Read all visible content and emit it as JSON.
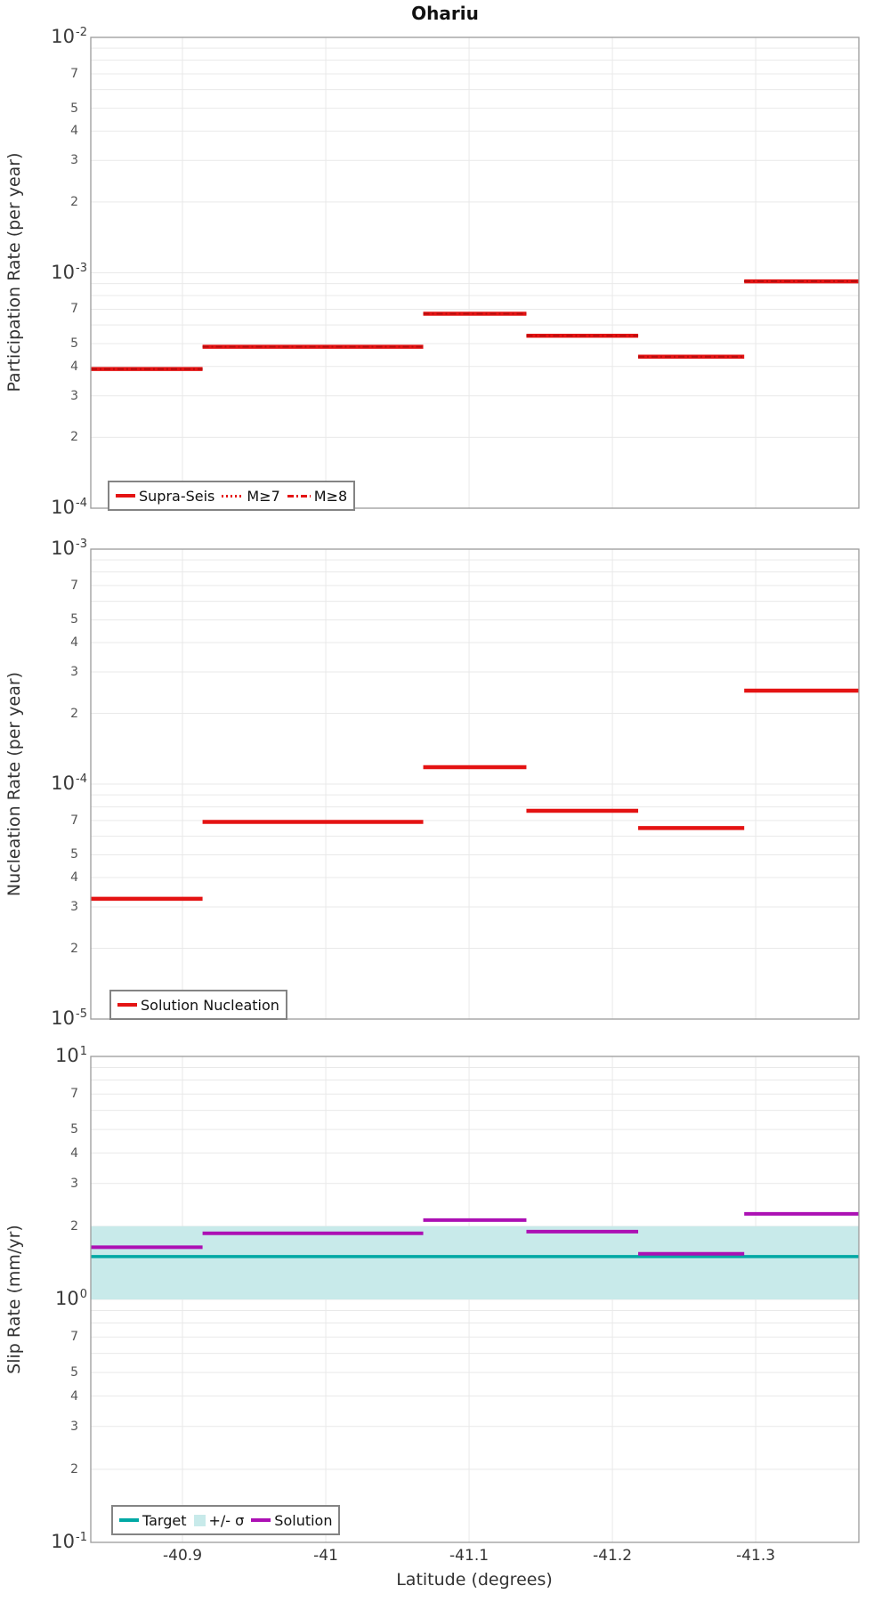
{
  "title": "Ohariu",
  "chart_data": [
    {
      "type": "line",
      "subplot": "participation",
      "title": "Ohariu",
      "ylabel": "Participation Rate (per year)",
      "xlabel": "",
      "ylim": [
        0.0001,
        0.01
      ],
      "xlim": [
        -40.836,
        -41.372
      ],
      "grid": true,
      "xticks": [
        -40.9,
        -41,
        -41.1,
        -41.2,
        -41.3
      ],
      "xtick_labels": [
        "-40.9",
        "-41",
        "-41.1",
        "-41.2",
        "-41.3"
      ],
      "ytick_majors": [
        {
          "base": "10",
          "exp": "-2"
        },
        {
          "base": "10",
          "exp": "-3"
        },
        {
          "base": "10",
          "exp": "-4"
        }
      ],
      "ytick_minors": [
        "7",
        "5",
        "4",
        "3",
        "2"
      ],
      "section_edges": [
        -40.836,
        -40.914,
        -41.068,
        -41.14,
        -41.218,
        -41.292,
        -41.372
      ],
      "series": [
        {
          "name": "Supra-Seis",
          "color": "#e41313",
          "style": "solid",
          "width": 4.5,
          "values": [
            0.00039,
            0.000485,
            0.00067,
            0.00054,
            0.00044,
            0.00092
          ]
        },
        {
          "name": "M≥7",
          "color": "#b50d0d",
          "style": "dotted",
          "width": 1.8,
          "values": [
            0.00039,
            0.000485,
            0.00067,
            0.00054,
            0.00044,
            0.00092
          ]
        },
        {
          "name": "M≥8",
          "color": "#b50d0d",
          "style": "dashdot",
          "width": 1.8,
          "values": [
            0.00039,
            0.000485,
            0.00067,
            0.00054,
            0.00044,
            0.00092
          ]
        }
      ],
      "legend_items": [
        {
          "label": "Supra-Seis",
          "swatch": "solid",
          "color": "#e41313"
        },
        {
          "label": "M≥7",
          "swatch": "dotted",
          "color": "#e41313"
        },
        {
          "label": "M≥8",
          "swatch": "dashdot",
          "color": "#e41313"
        }
      ],
      "legend_position": "bottom-left"
    },
    {
      "type": "line",
      "subplot": "nucleation",
      "title": "",
      "ylabel": "Nucleation Rate (per year)",
      "xlabel": "",
      "ylim": [
        1e-05,
        0.001
      ],
      "xlim": [
        -40.836,
        -41.372
      ],
      "grid": true,
      "xticks": [
        -40.9,
        -41,
        -41.1,
        -41.2,
        -41.3
      ],
      "xtick_labels": [
        "-40.9",
        "-41",
        "-41.1",
        "-41.2",
        "-41.3"
      ],
      "ytick_majors": [
        {
          "base": "10",
          "exp": "-3"
        },
        {
          "base": "10",
          "exp": "-4"
        },
        {
          "base": "10",
          "exp": "-5"
        }
      ],
      "ytick_minors": [
        "7",
        "5",
        "4",
        "3",
        "2"
      ],
      "section_edges": [
        -40.836,
        -40.914,
        -41.068,
        -41.14,
        -41.218,
        -41.292,
        -41.372
      ],
      "series": [
        {
          "name": "Solution Nucleation",
          "color": "#e41313",
          "style": "solid",
          "width": 4.5,
          "values": [
            3.25e-05,
            6.9e-05,
            0.000118,
            7.7e-05,
            6.5e-05,
            0.00025
          ]
        }
      ],
      "legend_items": [
        {
          "label": "Solution Nucleation",
          "swatch": "solid",
          "color": "#e41313"
        }
      ],
      "legend_position": "bottom-left"
    },
    {
      "type": "line",
      "subplot": "slip-rate",
      "title": "",
      "ylabel": "Slip Rate (mm/yr)",
      "xlabel": "Latitude (degrees)",
      "ylim": [
        0.1,
        10
      ],
      "xlim": [
        -40.836,
        -41.372
      ],
      "grid": true,
      "xticks": [
        -40.9,
        -41,
        -41.1,
        -41.2,
        -41.3
      ],
      "xtick_labels": [
        "-40.9",
        "-41",
        "-41.1",
        "-41.2",
        "-41.3"
      ],
      "ytick_majors": [
        {
          "base": "10",
          "exp": "1"
        },
        {
          "base": "10",
          "exp": "0"
        },
        {
          "base": "10",
          "exp": "-1"
        }
      ],
      "ytick_minors": [
        "7",
        "5",
        "4",
        "3",
        "2"
      ],
      "section_edges": [
        -40.836,
        -40.914,
        -41.068,
        -41.14,
        -41.218,
        -41.292,
        -41.372
      ],
      "band": {
        "ymin": 1.0,
        "ymax": 2.0,
        "color": "#c8eaea"
      },
      "series": [
        {
          "name": "Target",
          "color": "#00a8a4",
          "style": "solid",
          "width": 3.5,
          "full_width": true,
          "value": 1.5
        },
        {
          "name": "Solution",
          "color": "#ac10b4",
          "style": "solid",
          "width": 4,
          "values": [
            1.64,
            1.87,
            2.12,
            1.9,
            1.54,
            2.25
          ]
        }
      ],
      "legend_items": [
        {
          "label": "Target",
          "swatch": "solid",
          "color": "#00a8a4"
        },
        {
          "label": "+/- σ",
          "swatch": "patch",
          "color": "#c8eaea"
        },
        {
          "label": "Solution",
          "swatch": "solid",
          "color": "#ac10b4"
        }
      ],
      "legend_position": "bottom-left"
    }
  ],
  "colors": {
    "red": "#e41313",
    "teal": "#00a8a4",
    "purple": "#ac10b4",
    "band_cyan": "#c8eaea",
    "gridline": "#e9e9e9",
    "axis_border": "#9c9c9c"
  }
}
